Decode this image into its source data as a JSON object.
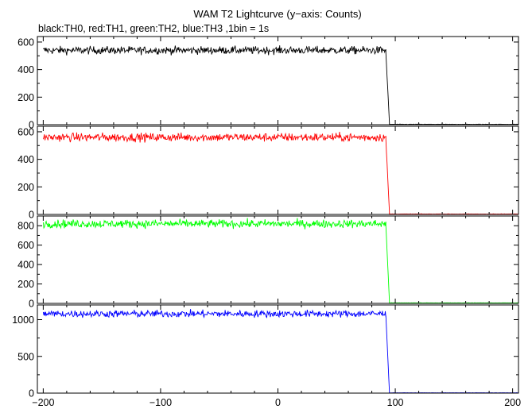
{
  "chart_data": {
    "type": "line",
    "title": "WAM T2 Lightcurve (y−axis: Counts)",
    "subtitle": "black:TH0, red:TH1, green:TH2, blue:TH3 ,1bin = 1s",
    "xlim": [
      -205,
      205
    ],
    "x_ticks": [
      -200,
      -100,
      0,
      100,
      200
    ],
    "x_tick_labels": [
      "−200",
      "−100",
      "0",
      "100",
      "200"
    ],
    "bin_size_s": 1,
    "grid": false,
    "panels": [
      {
        "name": "TH0",
        "color": "#000000",
        "ylim": [
          0,
          640
        ],
        "y_ticks": [
          0,
          200,
          400,
          600
        ],
        "y_tick_labels": [
          "0",
          "200",
          "400",
          "600"
        ],
        "segments": [
          {
            "x": [
              -200,
              92
            ],
            "y": [
              540,
              540
            ],
            "noise": 20
          },
          {
            "x": [
              92,
              95
            ],
            "y": [
              520,
              20
            ],
            "noise": 5
          },
          {
            "x": [
              95,
              205
            ],
            "y": [
              3,
              3
            ],
            "noise": 1
          }
        ]
      },
      {
        "name": "TH1",
        "color": "#ff0000",
        "ylim": [
          0,
          640
        ],
        "y_ticks": [
          0,
          200,
          400,
          600
        ],
        "y_tick_labels": [
          "0",
          "200",
          "400",
          "600"
        ],
        "segments": [
          {
            "x": [
              -200,
              92
            ],
            "y": [
              560,
              560
            ],
            "noise": 22
          },
          {
            "x": [
              92,
              95
            ],
            "y": [
              540,
              20
            ],
            "noise": 5
          },
          {
            "x": [
              95,
              205
            ],
            "y": [
              3,
              3
            ],
            "noise": 1
          }
        ]
      },
      {
        "name": "TH2",
        "color": "#00ff00",
        "ylim": [
          0,
          900
        ],
        "y_ticks": [
          0,
          200,
          400,
          600,
          800
        ],
        "y_tick_labels": [
          "0",
          "200",
          "400",
          "600",
          "800"
        ],
        "segments": [
          {
            "x": [
              -200,
              92
            ],
            "y": [
              820,
              820
            ],
            "noise": 30
          },
          {
            "x": [
              92,
              95
            ],
            "y": [
              800,
              30
            ],
            "noise": 5
          },
          {
            "x": [
              95,
              205
            ],
            "y": [
              5,
              5
            ],
            "noise": 1
          }
        ]
      },
      {
        "name": "TH3",
        "color": "#0000ff",
        "ylim": [
          0,
          1200
        ],
        "y_ticks": [
          0,
          500,
          1000
        ],
        "y_tick_labels": [
          "0",
          "500",
          "1000"
        ],
        "segments": [
          {
            "x": [
              -200,
              92
            ],
            "y": [
              1080,
              1080
            ],
            "noise": 35
          },
          {
            "x": [
              92,
              95
            ],
            "y": [
              1060,
              20
            ],
            "noise": 5
          },
          {
            "x": [
              95,
              205
            ],
            "y": [
              4,
              4
            ],
            "noise": 1
          }
        ]
      }
    ]
  }
}
